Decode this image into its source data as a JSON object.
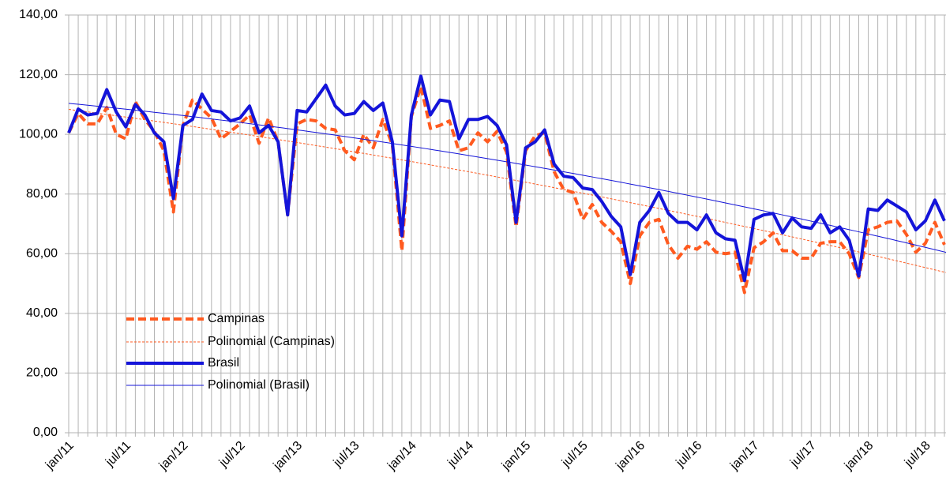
{
  "chart_data": {
    "type": "line",
    "categories": [
      "jan/11",
      null,
      null,
      null,
      null,
      null,
      "jul/11",
      null,
      null,
      null,
      null,
      null,
      "jan/12",
      null,
      null,
      null,
      null,
      null,
      "jul/12",
      null,
      null,
      null,
      null,
      null,
      "jan/13",
      null,
      null,
      null,
      null,
      null,
      "jul/13",
      null,
      null,
      null,
      null,
      null,
      "jan/14",
      null,
      null,
      null,
      null,
      null,
      "jul/14",
      null,
      null,
      null,
      null,
      null,
      "jan/15",
      null,
      null,
      null,
      null,
      null,
      "jul/15",
      null,
      null,
      null,
      null,
      null,
      "jan/16",
      null,
      null,
      null,
      null,
      null,
      "jul/16",
      null,
      null,
      null,
      null,
      null,
      "jan/17",
      null,
      null,
      null,
      null,
      null,
      "jul/17",
      null,
      null,
      null,
      null,
      null,
      "jan/18",
      null,
      null,
      null,
      null,
      null,
      "jul/18",
      null,
      null
    ],
    "series": [
      {
        "name": "Campinas",
        "color": "#ff5a1f",
        "dash": true,
        "trendline": {
          "type": "polynomial",
          "name": "Polinomial (Campinas)"
        },
        "values": [
          100.5,
          107,
          103.5,
          103.5,
          109,
          100,
          98.5,
          111,
          105,
          101,
          94.5,
          74,
          103,
          111.5,
          108.5,
          105.5,
          98.5,
          101,
          103.5,
          106.5,
          97,
          105.5,
          97.5,
          73,
          103.5,
          105,
          104.5,
          102,
          101.5,
          94.5,
          91.5,
          100,
          95.5,
          105,
          96.5,
          61,
          106,
          116,
          102,
          103,
          104.5,
          94.5,
          95.5,
          100.5,
          97.5,
          101,
          94,
          69,
          94.5,
          99.5,
          100.5,
          87.5,
          81.5,
          80.5,
          71.5,
          76.5,
          70.5,
          67.5,
          64,
          50,
          66,
          70.5,
          71.5,
          63,
          58.5,
          62.5,
          61.5,
          64,
          60.5,
          60,
          60.5,
          47,
          62,
          64,
          67,
          61,
          61,
          58.5,
          58.5,
          63.5,
          64,
          64,
          60,
          52,
          68,
          69,
          70.5,
          71,
          66.5,
          60.5,
          63.5,
          70.5,
          63
        ]
      },
      {
        "name": "Brasil",
        "color": "#1414d9",
        "dash": false,
        "trendline": {
          "type": "polynomial",
          "name": "Polinomial (Brasil)"
        },
        "values": [
          100.5,
          108.5,
          106.5,
          107,
          115,
          107.5,
          102.5,
          110,
          106.5,
          100.5,
          97.5,
          78.5,
          103,
          105,
          113.5,
          108,
          107.5,
          104.5,
          105.5,
          109.5,
          100.5,
          103,
          97.5,
          73,
          108,
          107.5,
          112,
          116.5,
          109.5,
          106.5,
          107,
          111,
          108,
          110.5,
          97.5,
          66,
          106.5,
          119.5,
          106.5,
          111.5,
          111,
          98.5,
          105,
          105,
          106,
          103,
          96.5,
          70.5,
          95.5,
          97.5,
          101.5,
          90,
          86,
          85.5,
          82,
          81.5,
          77.5,
          72.5,
          69,
          53,
          70.5,
          74.5,
          80.5,
          73.5,
          70.5,
          70.5,
          68,
          73,
          67,
          65,
          64.5,
          51,
          71.5,
          73,
          73.5,
          67,
          72,
          69,
          68.5,
          73,
          67,
          69,
          64.5,
          52.5,
          75,
          74.5,
          78,
          76,
          74,
          68,
          71,
          78,
          71
        ]
      }
    ],
    "ylim": [
      0,
      140
    ],
    "yticks": [
      {
        "value": 0,
        "label": "0,00"
      },
      {
        "value": 20,
        "label": "20,00"
      },
      {
        "value": 40,
        "label": "40,00"
      },
      {
        "value": 60,
        "label": "60,00"
      },
      {
        "value": 80,
        "label": "80,00"
      },
      {
        "value": 100,
        "label": "100,00"
      },
      {
        "value": 120,
        "label": "120,00"
      },
      {
        "value": 140,
        "label": "140,00"
      }
    ],
    "grid": true,
    "legend": "bottom-left"
  }
}
